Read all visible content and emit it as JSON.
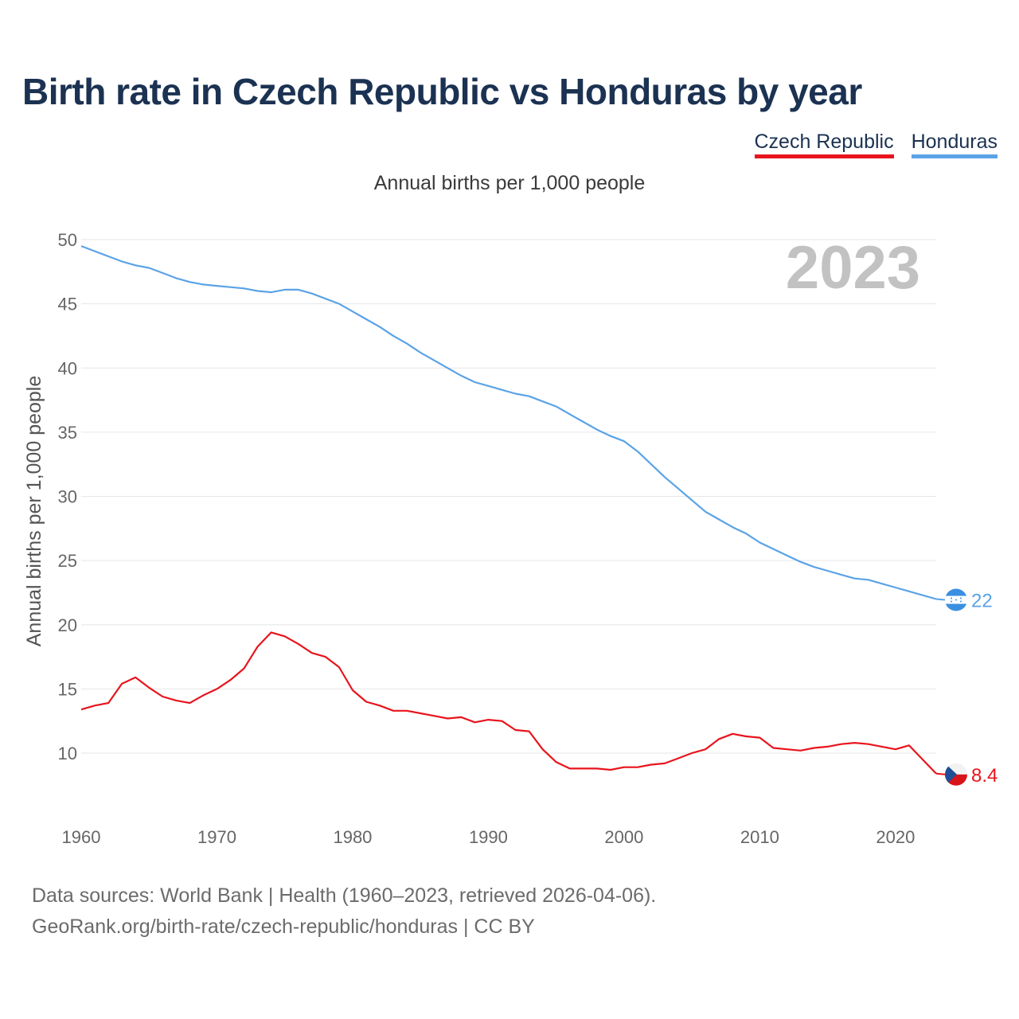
{
  "title": "Birth rate in Czech Republic vs Honduras by year",
  "legend": [
    {
      "label": "Czech Republic",
      "color": "#e8141c"
    },
    {
      "label": "Honduras",
      "color": "#5ba3e6"
    }
  ],
  "subtitle": "Annual births per 1,000 people",
  "watermark_year": "2023",
  "source_line1": "Data sources: World Bank | Health (1960–2023, retrieved 2026-04-06).",
  "source_line2": "GeoRank.org/birth-rate/czech-republic/honduras | CC BY",
  "chart_data": {
    "type": "line",
    "title": "Birth rate in Czech Republic vs Honduras by year",
    "ylabel": "Annual births per 1,000 people",
    "xlabel": "",
    "xlim": [
      1960,
      2023
    ],
    "ylim": [
      6,
      50
    ],
    "y_ticks": [
      10,
      15,
      20,
      25,
      30,
      35,
      40,
      45,
      50
    ],
    "x_ticks": [
      1960,
      1970,
      1980,
      1990,
      2000,
      2010,
      2020
    ],
    "grid": true,
    "x": [
      1960,
      1961,
      1962,
      1963,
      1964,
      1965,
      1966,
      1967,
      1968,
      1969,
      1970,
      1971,
      1972,
      1973,
      1974,
      1975,
      1976,
      1977,
      1978,
      1979,
      1980,
      1981,
      1982,
      1983,
      1984,
      1985,
      1986,
      1987,
      1988,
      1989,
      1990,
      1991,
      1992,
      1993,
      1994,
      1995,
      1996,
      1997,
      1998,
      1999,
      2000,
      2001,
      2002,
      2003,
      2004,
      2005,
      2006,
      2007,
      2008,
      2009,
      2010,
      2011,
      2012,
      2013,
      2014,
      2015,
      2016,
      2017,
      2018,
      2019,
      2020,
      2021,
      2022,
      2023
    ],
    "series": [
      {
        "name": "Czech Republic",
        "color": "#e8141c",
        "end_label": "8.4",
        "values": [
          13.4,
          13.7,
          13.9,
          15.4,
          15.9,
          15.1,
          14.4,
          14.1,
          13.9,
          14.5,
          15.0,
          15.7,
          16.6,
          18.3,
          19.4,
          19.1,
          18.5,
          17.8,
          17.5,
          16.7,
          14.9,
          14.0,
          13.7,
          13.3,
          13.3,
          13.1,
          12.9,
          12.7,
          12.8,
          12.4,
          12.6,
          12.5,
          11.8,
          11.7,
          10.3,
          9.3,
          8.8,
          8.8,
          8.8,
          8.7,
          8.9,
          8.9,
          9.1,
          9.2,
          9.6,
          10.0,
          10.3,
          11.1,
          11.5,
          11.3,
          11.2,
          10.4,
          10.3,
          10.2,
          10.4,
          10.5,
          10.7,
          10.8,
          10.7,
          10.5,
          10.3,
          10.6,
          9.5,
          8.4
        ]
      },
      {
        "name": "Honduras",
        "color": "#5ba3e6",
        "end_label": "22",
        "values": [
          49.5,
          49.1,
          48.7,
          48.3,
          48.0,
          47.8,
          47.4,
          47.0,
          46.7,
          46.5,
          46.4,
          46.3,
          46.2,
          46.0,
          45.9,
          46.1,
          46.1,
          45.8,
          45.4,
          45.0,
          44.4,
          43.8,
          43.2,
          42.5,
          41.9,
          41.2,
          40.6,
          40.0,
          39.4,
          38.9,
          38.6,
          38.3,
          38.0,
          37.8,
          37.4,
          37.0,
          36.4,
          35.8,
          35.2,
          34.7,
          34.3,
          33.5,
          32.5,
          31.5,
          30.6,
          29.7,
          28.8,
          28.2,
          27.6,
          27.1,
          26.4,
          25.9,
          25.4,
          24.9,
          24.5,
          24.2,
          23.9,
          23.6,
          23.5,
          23.2,
          22.9,
          22.6,
          22.3,
          22.0
        ]
      }
    ]
  }
}
